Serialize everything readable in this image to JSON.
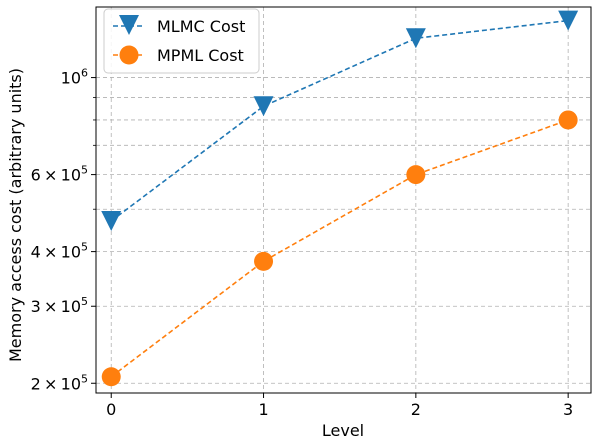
{
  "chart_data": {
    "type": "line",
    "title": "",
    "xlabel": "Level",
    "ylabel": "Memory access cost (arbitrary units)",
    "y_scale": "log",
    "ylim": [
      190000,
      1450000
    ],
    "xlim": [
      -0.1,
      3.15
    ],
    "x": [
      0,
      1,
      2,
      3
    ],
    "x_tick_labels": [
      "0",
      "1",
      "2",
      "3"
    ],
    "y_ticks": [
      {
        "value": 200000,
        "mantissa": "2",
        "exponent": "5"
      },
      {
        "value": 300000,
        "mantissa": "3",
        "exponent": "5"
      },
      {
        "value": 400000,
        "mantissa": "4",
        "exponent": "5"
      },
      {
        "value": 600000,
        "mantissa": "6",
        "exponent": "5"
      },
      {
        "value": 1000000,
        "mantissa": "",
        "exponent": "6"
      }
    ],
    "y_minor_gridlines": [
      500000,
      700000,
      800000,
      900000
    ],
    "grid": true,
    "legend_position": "top-left",
    "series": [
      {
        "name": "MLMC Cost",
        "values": [
          470000,
          860000,
          1230000,
          1350000
        ],
        "color": "#1f77b4",
        "marker": "triangle-down"
      },
      {
        "name": "MPML Cost",
        "values": [
          207000,
          380000,
          600000,
          800000
        ],
        "color": "#ff7f0e",
        "marker": "circle"
      }
    ]
  }
}
